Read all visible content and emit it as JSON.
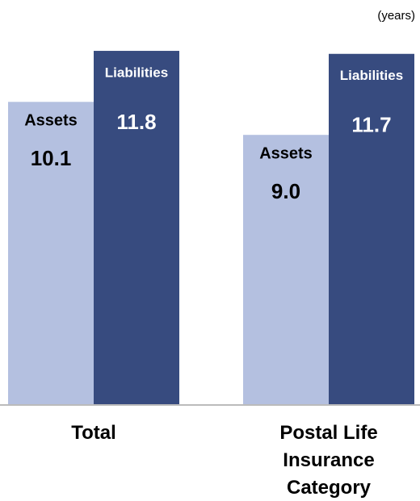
{
  "chart_data": {
    "type": "bar",
    "unit": "(years)",
    "categories": [
      "Total",
      "Postal Life Insurance Category"
    ],
    "series": [
      {
        "name": "Assets",
        "color": "#b4c0e0",
        "values": [
          10.1,
          9.0
        ],
        "value_labels": [
          "10.1",
          "9.0"
        ]
      },
      {
        "name": "Liabilities",
        "color": "#374b7f",
        "values": [
          11.8,
          11.7
        ]
      }
    ],
    "ylim": [
      0,
      12.5
    ]
  }
}
